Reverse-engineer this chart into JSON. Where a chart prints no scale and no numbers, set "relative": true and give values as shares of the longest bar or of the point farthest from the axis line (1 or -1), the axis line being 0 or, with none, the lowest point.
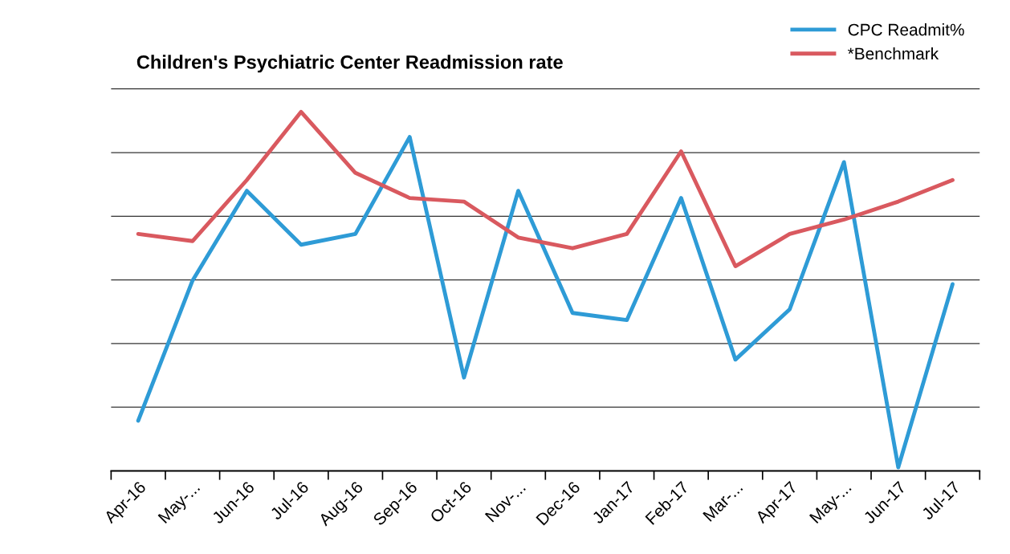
{
  "chart_data": {
    "type": "line",
    "title": "Children's Psychiatric Center Readmission rate",
    "relative": true,
    "grid": "y",
    "legend": "top right",
    "marker": "none",
    "line_style": "solid",
    "categories": [
      "Apr-16",
      "May-...",
      "Jun-16",
      "Jul-16",
      "Aug-16",
      "Sep-16",
      "Oct-16",
      "Nov-...",
      "Dec-16",
      "Jan-17",
      "Feb-17",
      "Mar-...",
      "Apr-17",
      "May-...",
      "Jun-17",
      "Jul-17"
    ],
    "series": [
      {
        "name": "CPC Readmit%",
        "color": "#2e9bd6",
        "values": [
          0.14,
          0.53,
          0.78,
          0.63,
          0.66,
          0.93,
          0.26,
          0.78,
          0.44,
          0.42,
          0.76,
          0.31,
          0.45,
          0.86,
          0.01,
          0.52
        ]
      },
      {
        "name": "*Benchmark",
        "color": "#d9595f",
        "values": [
          0.66,
          0.64,
          0.81,
          1.0,
          0.83,
          0.76,
          0.75,
          0.65,
          0.62,
          0.66,
          0.89,
          0.57,
          0.66,
          0.7,
          0.75,
          0.81
        ]
      }
    ]
  }
}
